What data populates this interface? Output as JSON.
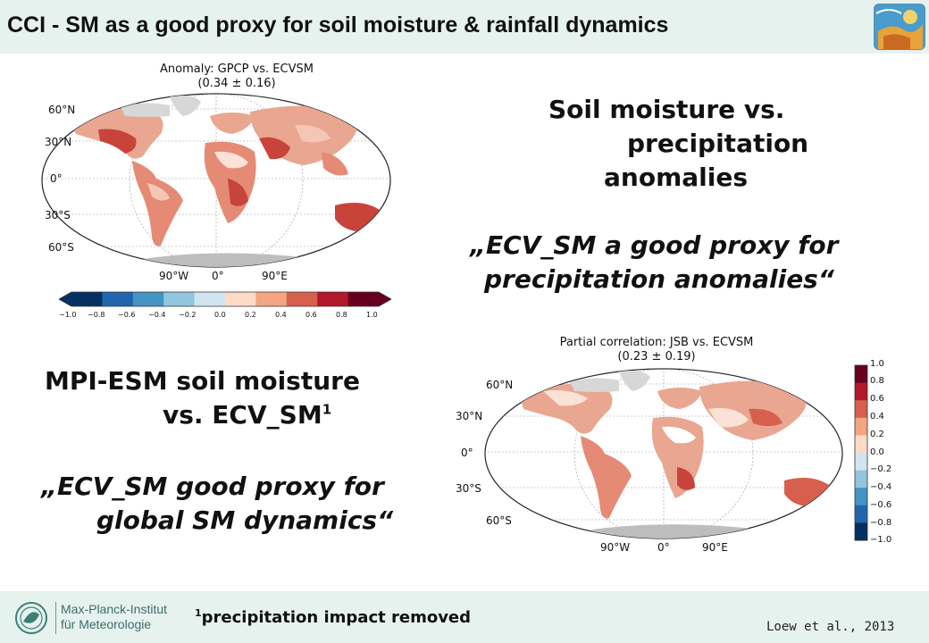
{
  "header": {
    "title": "CCI - SM as a good proxy for soil moisture & rainfall dynamics",
    "logo_icon": "satellite-globe-icon"
  },
  "top_right": {
    "line1": "Soil moisture vs.",
    "line2": "precipitation",
    "line3": "anomalies",
    "quote_line1": "„ECV_SM a good proxy for",
    "quote_line2": "precipitation anomalies“"
  },
  "bottom_left": {
    "line1": "MPI-ESM soil moisture",
    "line2": "vs. ECV_SM",
    "sup": "1",
    "quote_line1": "„ECV_SM good proxy for",
    "quote_line2": "global SM dynamics“"
  },
  "map1": {
    "title": "Anomaly: GPCP vs. ECVSM",
    "subtitle": "(0.34 ± 0.16)",
    "lat_labels": [
      "60°N",
      "30°N",
      "0°",
      "30°S",
      "60°S"
    ],
    "lon_labels": [
      "90°W",
      "0°",
      "90°E"
    ],
    "colorbar_ticks": [
      "−1.0",
      "−0.8",
      "−0.6",
      "−0.4",
      "−0.2",
      "0.0",
      "0.2",
      "0.4",
      "0.6",
      "0.8",
      "1.0"
    ]
  },
  "map2": {
    "title": "Partial correlation: JSB vs. ECVSM",
    "subtitle": "(0.23 ± 0.19)",
    "lat_labels": [
      "60°N",
      "30°N",
      "0°",
      "30°S",
      "60°S"
    ],
    "lon_labels": [
      "90°W",
      "0°",
      "90°E"
    ],
    "colorbar_ticks": [
      "1.0",
      "0.8",
      "0.6",
      "0.4",
      "0.2",
      "0.0",
      "−0.2",
      "−0.4",
      "−0.6",
      "−0.8",
      "−1.0"
    ]
  },
  "colormap": [
    "#053061",
    "#2166ac",
    "#4393c3",
    "#92c5de",
    "#d1e5f0",
    "#fddbc7",
    "#f4a582",
    "#d6604d",
    "#b2182b",
    "#67001f"
  ],
  "footer": {
    "institute_line1": "Max-Planck-Institut",
    "institute_line2": "für Meteorologie",
    "note_sup": "1",
    "note": "precipitation impact removed",
    "citation": "Loew et al., 2013"
  }
}
